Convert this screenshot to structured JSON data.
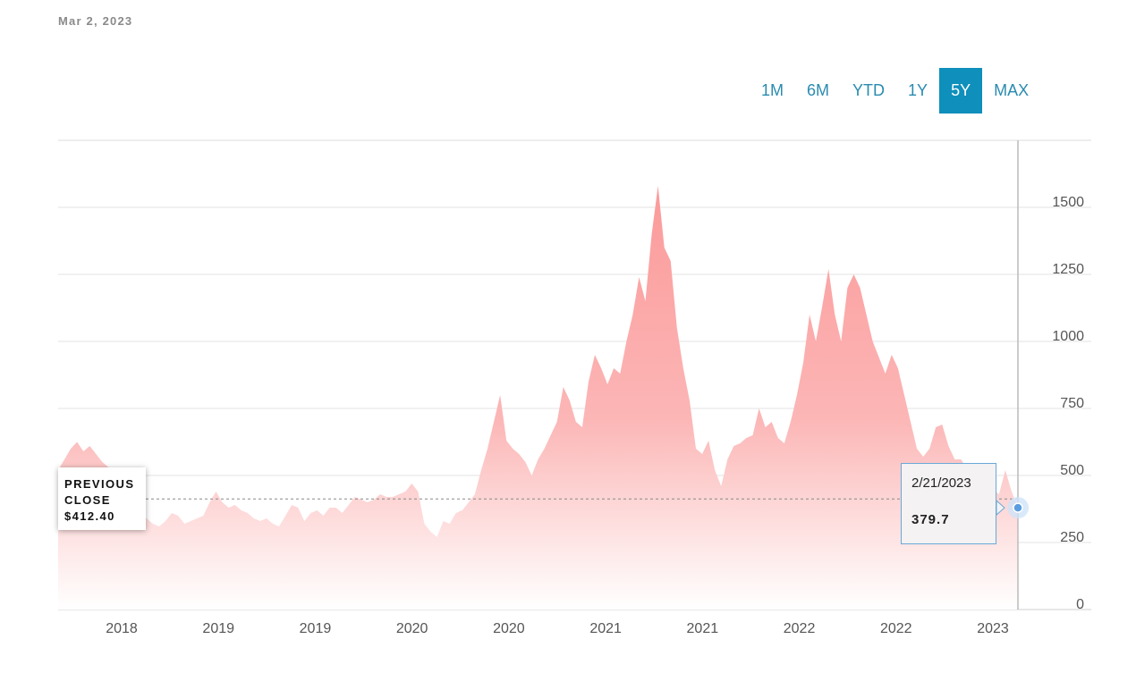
{
  "header": {
    "date": "Mar 2, 2023"
  },
  "range_tabs": [
    {
      "label": "1M",
      "active": false
    },
    {
      "label": "6M",
      "active": false
    },
    {
      "label": "YTD",
      "active": false
    },
    {
      "label": "1Y",
      "active": false
    },
    {
      "label": "5Y",
      "active": true
    },
    {
      "label": "MAX",
      "active": false
    }
  ],
  "previous_close": {
    "line1": "PREVIOUS",
    "line2": "CLOSE",
    "value": "$412.40"
  },
  "tooltip": {
    "date": "2/21/2023",
    "value": "379.7"
  },
  "colors": {
    "accent": "#0f8fbb",
    "area": "#fca5a5",
    "tooltip_border": "#6aa8d8",
    "point": "#5b9ee0"
  },
  "chart_data": {
    "type": "area",
    "title": "",
    "xlabel": "",
    "ylabel": "",
    "ylim": [
      0,
      1750
    ],
    "yticks": [
      0,
      250,
      500,
      750,
      1000,
      1250,
      1500
    ],
    "xtick_labels": [
      "2018",
      "2019",
      "2019",
      "2020",
      "2020",
      "2021",
      "2021",
      "2022",
      "2022",
      "2023"
    ],
    "grid": true,
    "previous_close": 412.4,
    "highlight": {
      "date": "2/21/2023",
      "value": 379.7
    },
    "series": [
      {
        "values": [
          520,
          560,
          600,
          625,
          590,
          610,
          580,
          550,
          530,
          520,
          470,
          420,
          360,
          345,
          340,
          320,
          310,
          330,
          360,
          350,
          320,
          330,
          340,
          350,
          400,
          440,
          400,
          380,
          390,
          370,
          360,
          340,
          330,
          340,
          320,
          310,
          350,
          390,
          380,
          330,
          360,
          370,
          350,
          380,
          380,
          360,
          390,
          420,
          410,
          400,
          410,
          430,
          420,
          420,
          430,
          440,
          470,
          440,
          320,
          290,
          270,
          330,
          320,
          360,
          370,
          400,
          430,
          520,
          600,
          700,
          800,
          630,
          600,
          580,
          550,
          500,
          560,
          600,
          650,
          700,
          830,
          780,
          700,
          680,
          850,
          950,
          900,
          840,
          900,
          880,
          1000,
          1100,
          1240,
          1150,
          1400,
          1580,
          1350,
          1300,
          1050,
          900,
          780,
          600,
          580,
          630,
          520,
          460,
          560,
          610,
          620,
          640,
          650,
          750,
          680,
          700,
          640,
          620,
          700,
          800,
          920,
          1100,
          1000,
          1130,
          1270,
          1100,
          1000,
          1200,
          1250,
          1200,
          1100,
          1000,
          940,
          880,
          950,
          900,
          800,
          700,
          600,
          570,
          600,
          680,
          690,
          610,
          560,
          560,
          520,
          510,
          500,
          440,
          450,
          430,
          520,
          440,
          380
        ]
      }
    ]
  }
}
